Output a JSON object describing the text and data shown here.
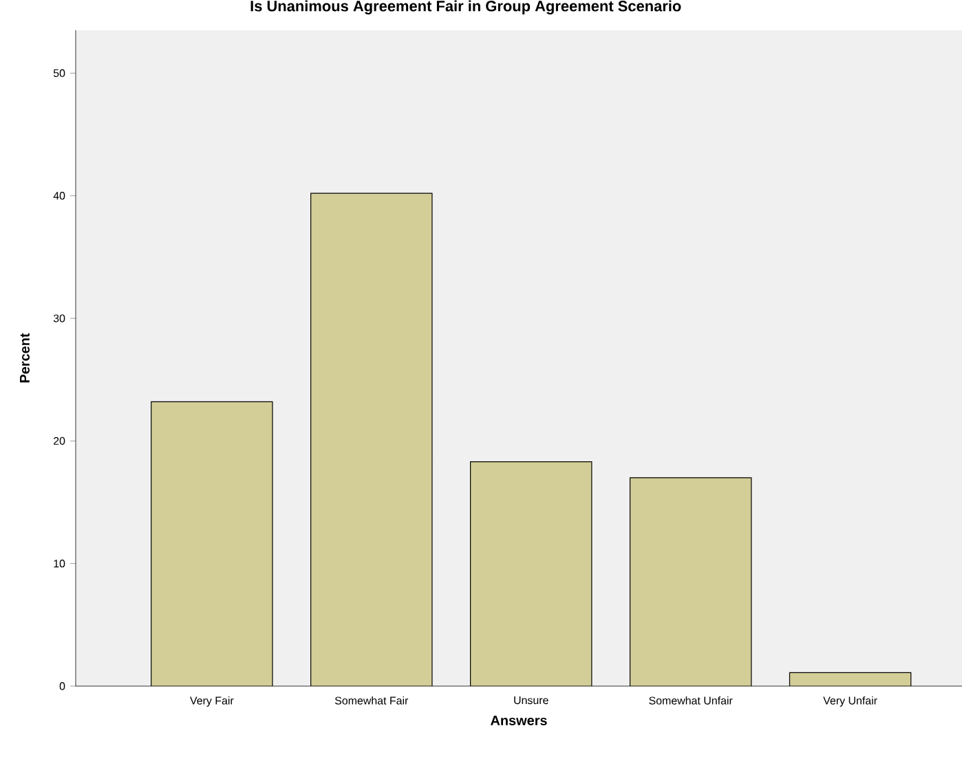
{
  "chart_data": {
    "type": "bar",
    "title": "Is Unanimous Agreement Fair in Group Agreement Scenario",
    "xlabel": "Answers",
    "ylabel": "Percent",
    "categories": [
      "Very Fair",
      "Somewhat Fair",
      "Unsure",
      "Somewhat Unfair",
      "Very Unfair"
    ],
    "values": [
      23.2,
      40.2,
      18.3,
      17.0,
      1.1
    ],
    "color": "#d3ce97",
    "ylim": [
      0,
      53.5
    ],
    "yticks": [
      0,
      10,
      20,
      30,
      40,
      50
    ]
  }
}
